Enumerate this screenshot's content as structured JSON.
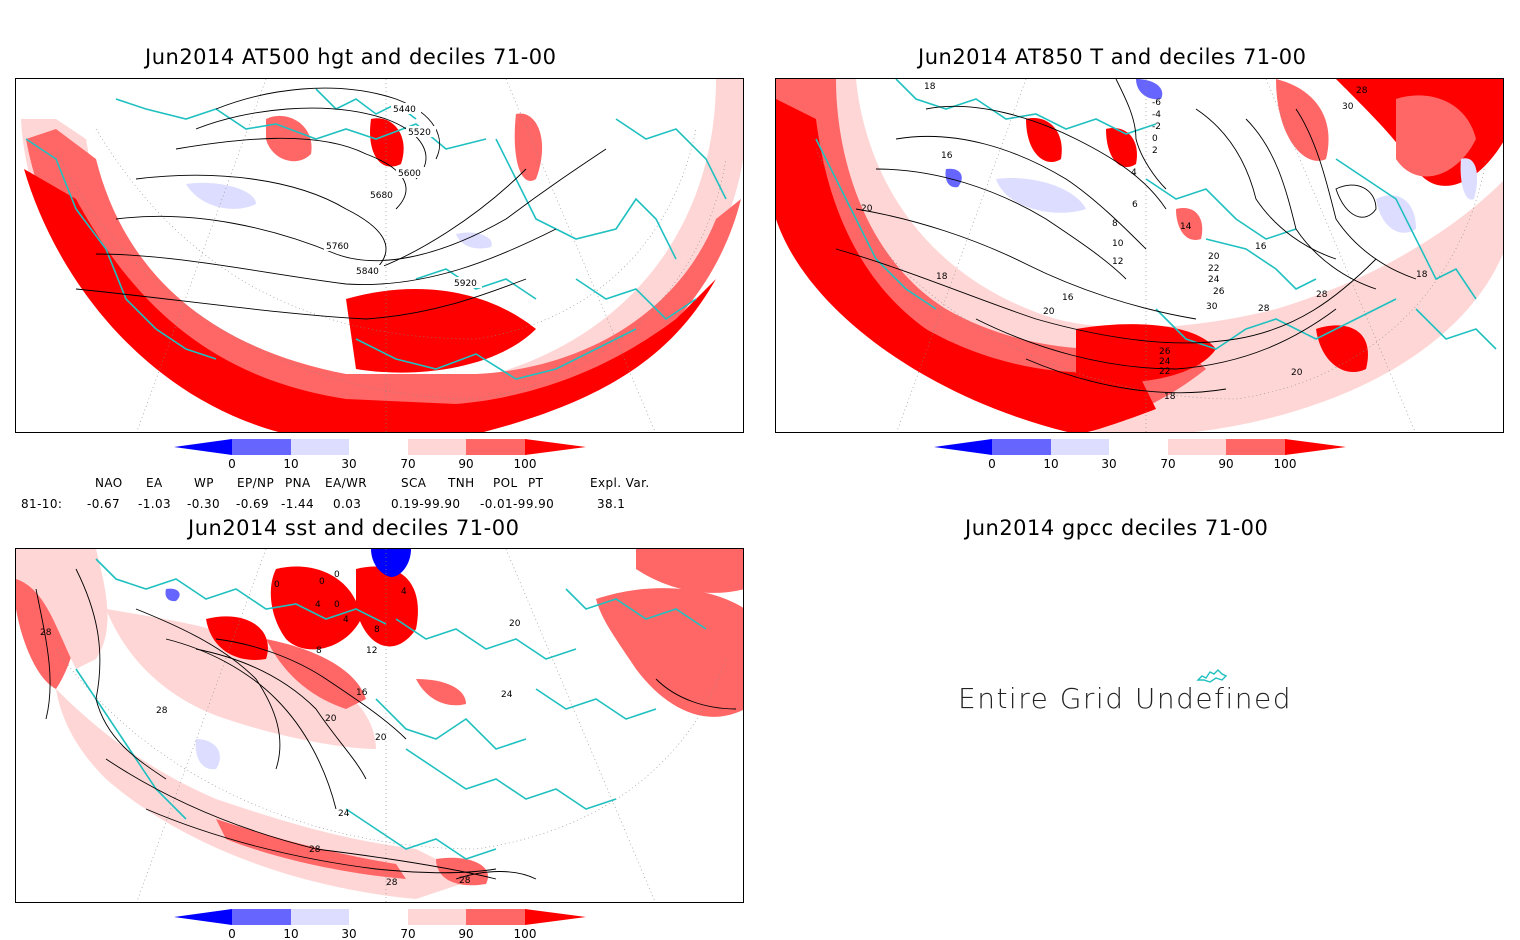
{
  "panels": [
    {
      "id": "p1",
      "title": "Jun2014 AT500 hgt and deciles 71-00"
    },
    {
      "id": "p2",
      "title": "Jun2014 AT850 T and deciles 71-00"
    },
    {
      "id": "p3",
      "title": "Jun2014 sst and deciles 71-00"
    },
    {
      "id": "p4",
      "title": "Jun2014 gpcc deciles 71-00",
      "message": "Entire Grid Undefined"
    }
  ],
  "colorbar": {
    "ticks": [
      "0",
      "10",
      "30",
      "70",
      "90",
      "100"
    ],
    "colors": [
      "#0000ff",
      "#6666ff",
      "#ddddff",
      "#ffffff",
      "#ffd6d6",
      "#ff6666",
      "#ff0000"
    ]
  },
  "indices": {
    "headers": [
      "NAO",
      "EA",
      "WP",
      "EP/NP",
      "PNA",
      "EA/WR",
      "SCA",
      "TNH",
      "POL",
      "PT",
      "Expl. Var."
    ],
    "row_label": "81-10:",
    "values": [
      "-0.67",
      "-1.03",
      "-0.30",
      "-0.69",
      "-1.44",
      "0.03",
      "0.19-99.90",
      "-0.01-99.90",
      "38.1"
    ]
  },
  "contour_labels": {
    "p1": [
      "5440",
      "5520",
      "5600",
      "5680",
      "5760",
      "5840",
      "5920"
    ],
    "p2": [
      "18",
      "16",
      "20",
      "18",
      "-6",
      "-4",
      "-2",
      "0",
      "2",
      "4",
      "6",
      "8",
      "10",
      "12",
      "14",
      "16",
      "20",
      "22",
      "24",
      "26",
      "28",
      "30",
      "28",
      "30",
      "16",
      "18",
      "28",
      "20",
      "26",
      "24",
      "22",
      "18",
      "20"
    ],
    "p3": [
      "0",
      "0",
      "0",
      "0",
      "4",
      "4",
      "8",
      "12",
      "4",
      "8",
      "16",
      "20",
      "20",
      "24",
      "28",
      "28",
      "28",
      "28",
      "24",
      "28",
      "20"
    ]
  },
  "colors": {
    "coast": "#20c0c0",
    "contour": "#000000"
  }
}
